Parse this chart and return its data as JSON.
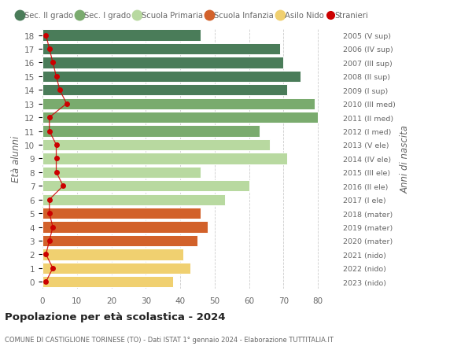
{
  "ages": [
    18,
    17,
    16,
    15,
    14,
    13,
    12,
    11,
    10,
    9,
    8,
    7,
    6,
    5,
    4,
    3,
    2,
    1,
    0
  ],
  "years_labels": [
    "2005 (V sup)",
    "2006 (IV sup)",
    "2007 (III sup)",
    "2008 (II sup)",
    "2009 (I sup)",
    "2010 (III med)",
    "2011 (II med)",
    "2012 (I med)",
    "2013 (V ele)",
    "2014 (IV ele)",
    "2015 (III ele)",
    "2016 (II ele)",
    "2017 (I ele)",
    "2018 (mater)",
    "2019 (mater)",
    "2020 (mater)",
    "2021 (nido)",
    "2022 (nido)",
    "2023 (nido)"
  ],
  "bar_values": [
    46,
    69,
    70,
    75,
    71,
    79,
    80,
    63,
    66,
    71,
    46,
    60,
    53,
    46,
    48,
    45,
    41,
    43,
    38
  ],
  "bar_colors": [
    "#4a7c59",
    "#4a7c59",
    "#4a7c59",
    "#4a7c59",
    "#4a7c59",
    "#7aab6e",
    "#7aab6e",
    "#7aab6e",
    "#b8d9a0",
    "#b8d9a0",
    "#b8d9a0",
    "#b8d9a0",
    "#b8d9a0",
    "#d2612a",
    "#d2612a",
    "#d2612a",
    "#f0d070",
    "#f0d070",
    "#f0d070"
  ],
  "stranieri_values": [
    1,
    2,
    3,
    4,
    5,
    7,
    2,
    2,
    4,
    4,
    4,
    6,
    2,
    2,
    3,
    2,
    1,
    3,
    1
  ],
  "title": "Popolazione per età scolastica - 2024",
  "subtitle": "COMUNE DI CASTIGLIONE TORINESE (TO) - Dati ISTAT 1° gennaio 2024 - Elaborazione TUTTITALIA.IT",
  "ylabel": "Età alunni",
  "right_ylabel": "Anni di nascita",
  "xlim": [
    0,
    85
  ],
  "xticks": [
    0,
    10,
    20,
    30,
    40,
    50,
    60,
    70,
    80
  ],
  "legend_items": [
    {
      "label": "Sec. II grado",
      "color": "#4a7c59",
      "type": "patch"
    },
    {
      "label": "Sec. I grado",
      "color": "#7aab6e",
      "type": "patch"
    },
    {
      "label": "Scuola Primaria",
      "color": "#b8d9a0",
      "type": "patch"
    },
    {
      "label": "Scuola Infanzia",
      "color": "#d2612a",
      "type": "patch"
    },
    {
      "label": "Asilo Nido",
      "color": "#f0d070",
      "type": "patch"
    },
    {
      "label": "Stranieri",
      "color": "#cc0000",
      "type": "circle"
    }
  ],
  "bar_height": 0.82,
  "background_color": "#ffffff",
  "grid_color": "#cccccc",
  "text_color": "#666666",
  "stranieri_color": "#cc0000"
}
